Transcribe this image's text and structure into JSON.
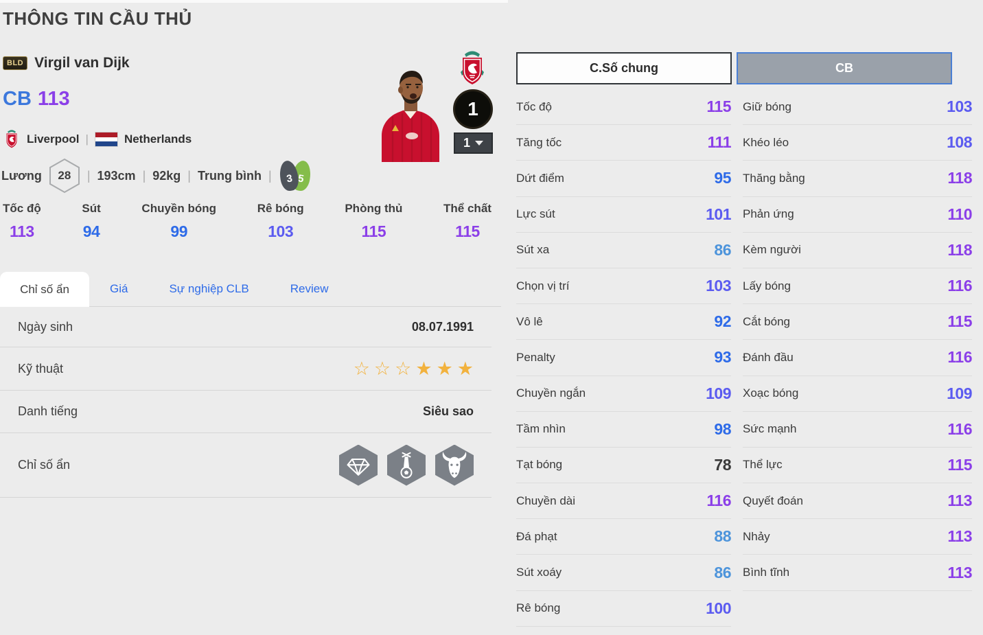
{
  "page": {
    "title": "THÔNG TIN CẦU THỦ"
  },
  "player": {
    "badge": "BLD",
    "name": "Virgil van Dijk",
    "position": "CB",
    "rating": "113",
    "club": "Liverpool",
    "nation": "Netherlands",
    "separator": "|",
    "salary_label": "Lương",
    "salary": "28",
    "height": "193cm",
    "weight": "92kg",
    "body_type": "Trung bình",
    "weak_foot": "3",
    "strong_foot": "5",
    "enhance_level": "1",
    "level_selector": "1"
  },
  "summary_stats": [
    {
      "label": "Tốc độ",
      "value": "113"
    },
    {
      "label": "Sút",
      "value": "94"
    },
    {
      "label": "Chuyền bóng",
      "value": "99"
    },
    {
      "label": "Rê bóng",
      "value": "103"
    },
    {
      "label": "Phòng thủ",
      "value": "115"
    },
    {
      "label": "Thể chất",
      "value": "115"
    }
  ],
  "tabs": [
    {
      "label": "Chỉ số ẩn",
      "active": true
    },
    {
      "label": "Giá"
    },
    {
      "label": "Sự nghiệp CLB"
    },
    {
      "label": "Review"
    }
  ],
  "info": {
    "birth_label": "Ngày sinh",
    "birth_value": "08.07.1991",
    "skill_label": "Kỹ thuật",
    "skill_stars": {
      "empty": 3,
      "filled": 3
    },
    "fame_label": "Danh tiếng",
    "fame_value": "Siêu sao",
    "hidden_label": "Chỉ số ẩn",
    "hidden_icons": [
      "diamond-icon",
      "power-shot-icon",
      "buffalo-icon"
    ]
  },
  "stat_panel": {
    "tab_general": "C.Số chung",
    "tab_position": "CB",
    "left": [
      {
        "label": "Tốc độ",
        "value": "115"
      },
      {
        "label": "Tăng tốc",
        "value": "111"
      },
      {
        "label": "Dứt điểm",
        "value": "95"
      },
      {
        "label": "Lực sút",
        "value": "101"
      },
      {
        "label": "Sút xa",
        "value": "86"
      },
      {
        "label": "Chọn vị trí",
        "value": "103"
      },
      {
        "label": "Vô lê",
        "value": "92"
      },
      {
        "label": "Penalty",
        "value": "93"
      },
      {
        "label": "Chuyền ngắn",
        "value": "109"
      },
      {
        "label": "Tầm nhìn",
        "value": "98"
      },
      {
        "label": "Tạt bóng",
        "value": "78"
      },
      {
        "label": "Chuyền dài",
        "value": "116"
      },
      {
        "label": "Đá phạt",
        "value": "88"
      },
      {
        "label": "Sút xoáy",
        "value": "86"
      },
      {
        "label": "Rê bóng",
        "value": "100"
      }
    ],
    "right": [
      {
        "label": "Giữ bóng",
        "value": "103"
      },
      {
        "label": "Khéo léo",
        "value": "108"
      },
      {
        "label": "Thăng bằng",
        "value": "118"
      },
      {
        "label": "Phản ứng",
        "value": "110"
      },
      {
        "label": "Kèm người",
        "value": "118"
      },
      {
        "label": "Lấy bóng",
        "value": "116"
      },
      {
        "label": "Cắt bóng",
        "value": "115"
      },
      {
        "label": "Đánh đầu",
        "value": "116"
      },
      {
        "label": "Xoạc bóng",
        "value": "109"
      },
      {
        "label": "Sức mạnh",
        "value": "116"
      },
      {
        "label": "Thể lực",
        "value": "115"
      },
      {
        "label": "Quyết đoán",
        "value": "113"
      },
      {
        "label": "Nhảy",
        "value": "113"
      },
      {
        "label": "Bình tĩnh",
        "value": "113"
      }
    ]
  },
  "colors": {
    "value_110_plus": "#8B3FE8",
    "value_100_109": "#5B5BF0",
    "value_90_99": "#2E6BE8",
    "value_80_89": "#4D94DB",
    "value_below_80": "#3A3A3A",
    "position_text": "#3C78DC",
    "link_blue": "#2E6BE8",
    "star_gold": "#F2B23E",
    "foot_green": "#85BD4B",
    "foot_dark": "#4E535B",
    "liverpool_red": "#C8102E",
    "background": "#ECECEC"
  }
}
